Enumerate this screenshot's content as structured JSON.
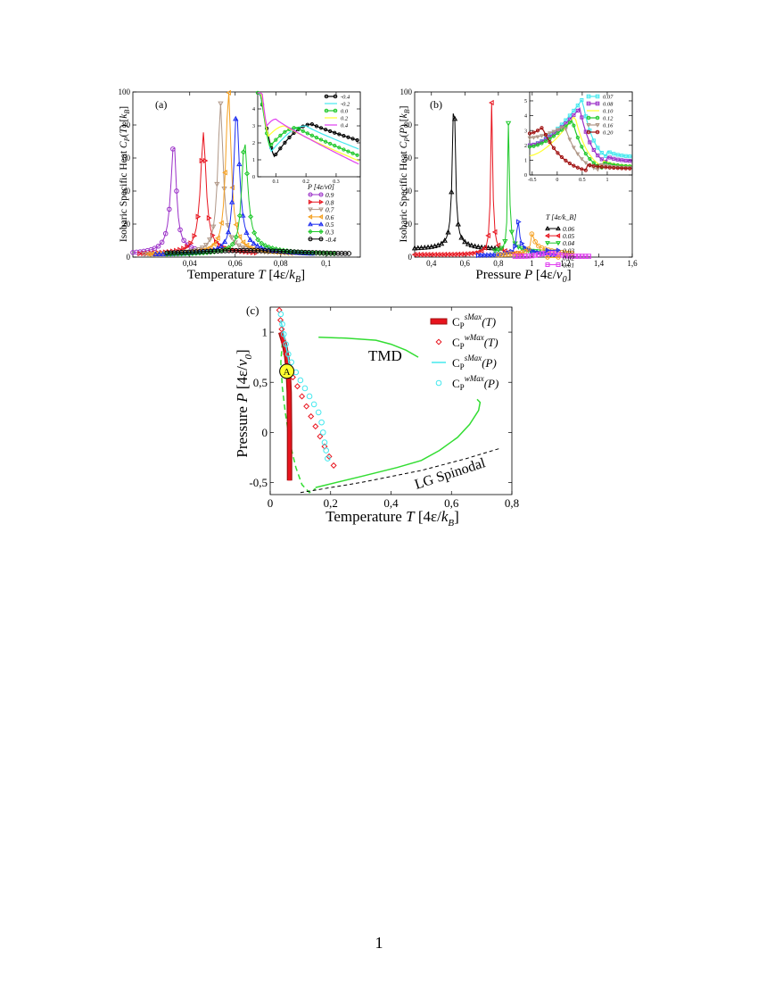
{
  "page_number": "1",
  "colors": {
    "purple": "#9b30c8",
    "red": "#e8141e",
    "tan": "#b09888",
    "orange": "#f5a020",
    "blue": "#1c2cf0",
    "green": "#1ec82a",
    "black": "#000000",
    "cyan": "#44e8ee",
    "yellow": "#ffff30",
    "magenta": "#e040f0",
    "darkred": "#a01010",
    "brightgreen": "#33dd33"
  },
  "chart_data": [
    {
      "id": "a",
      "type": "line",
      "panel_label": "(a)",
      "xlabel": "Temperature T  [4ε/k_B]",
      "ylabel": "Isobaric Specific Heat C_P(T)  [k_B]",
      "xlim": [
        0.015,
        0.115
      ],
      "ylim": [
        0,
        100
      ],
      "xticks": [
        {
          "v": 0.04,
          "t": "0,04"
        },
        {
          "v": 0.06,
          "t": "0,06"
        },
        {
          "v": 0.08,
          "t": "0,08"
        },
        {
          "v": 0.1,
          "t": "0,1"
        }
      ],
      "yticks": [
        0,
        20,
        40,
        60,
        80,
        100
      ],
      "legend_title": "P  [4ε/v0]",
      "series": [
        {
          "name": "0.9",
          "color": "purple",
          "marker": "o",
          "peak": 0.033,
          "height": 65,
          "base": 1.5,
          "wl": 0.0045,
          "wr": 0.0035,
          "xmin": 0.015,
          "xmax": 0.05
        },
        {
          "name": "0.8",
          "color": "red",
          "marker": ">",
          "peak": 0.046,
          "height": 68,
          "base": 1.5,
          "wl": 0.0045,
          "wr": 0.004,
          "xmin": 0.018,
          "xmax": 0.07
        },
        {
          "name": "0.7",
          "color": "tan",
          "marker": "v",
          "peak": 0.0535,
          "height": 86,
          "base": 1.5,
          "wl": 0.004,
          "wr": 0.004,
          "xmin": 0.02,
          "xmax": 0.075
        },
        {
          "name": "0.6",
          "color": "orange",
          "marker": "<",
          "peak": 0.057,
          "height": 94,
          "base": 1.5,
          "wl": 0.004,
          "wr": 0.004,
          "xmin": 0.022,
          "xmax": 0.085
        },
        {
          "name": "0.5",
          "color": "blue",
          "marker": "^",
          "peak": 0.0605,
          "height": 83,
          "base": 1.5,
          "wl": 0.004,
          "wr": 0.0045,
          "xmin": 0.025,
          "xmax": 0.095
        },
        {
          "name": "0.3",
          "color": "green",
          "marker": "d",
          "peak": 0.064,
          "height": 64,
          "base": 1.5,
          "wl": 0.004,
          "wr": 0.005,
          "xmin": 0.03,
          "xmax": 0.105
        },
        {
          "name": "-0.4",
          "color": "black",
          "marker": "o",
          "peak": 0.064,
          "height": 0,
          "base": 2.0,
          "wl": 0.01,
          "wr": 0.02,
          "xmin": 0.03,
          "xmax": 0.11
        }
      ],
      "inset": {
        "xlim": [
          0.04,
          0.38
        ],
        "ylim": [
          0,
          5
        ],
        "xticks": [
          {
            "v": 0.1,
            "t": "0.1"
          },
          {
            "v": 0.2,
            "t": "0.2"
          },
          {
            "v": 0.3,
            "t": "0.3"
          }
        ],
        "yticks": [
          0,
          1,
          2,
          3,
          4
        ],
        "series": [
          {
            "name": "-0.4",
            "color": "black",
            "marker": "o",
            "min_x": 0.095,
            "min_y": 1.2,
            "peak_x": 0.22,
            "peak_y": 3.1,
            "end_y": 2.1
          },
          {
            "name": "-0.2",
            "color": "cyan",
            "marker": "none",
            "min_x": 0.085,
            "min_y": 1.5,
            "peak_x": 0.2,
            "peak_y": 3.0,
            "end_y": 1.6
          },
          {
            "name": "0.0",
            "color": "green",
            "marker": "o",
            "min_x": 0.08,
            "min_y": 1.8,
            "peak_x": 0.17,
            "peak_y": 2.9,
            "end_y": 1.2
          },
          {
            "name": "0.2",
            "color": "yellow",
            "marker": "none",
            "min_x": 0.075,
            "min_y": 2.4,
            "peak_x": 0.13,
            "peak_y": 3.0,
            "end_y": 0.9
          },
          {
            "name": "0.4",
            "color": "magenta",
            "marker": "none",
            "min_x": 0.07,
            "min_y": 3.0,
            "peak_x": 0.1,
            "peak_y": 3.4,
            "end_y": 0.7
          }
        ]
      }
    },
    {
      "id": "b",
      "type": "line",
      "panel_label": "(b)",
      "xlabel": "Pressure P  [4ε/v_0]",
      "ylabel": "Isobaric Specific Heat C_P(P)  [k_B]",
      "xlim": [
        0.3,
        1.6
      ],
      "ylim": [
        0,
        100
      ],
      "xticks": [
        {
          "v": 0.4,
          "t": "0,4"
        },
        {
          "v": 0.6,
          "t": "0,6"
        },
        {
          "v": 0.8,
          "t": "0,8"
        },
        {
          "v": 1.0,
          "t": "1"
        },
        {
          "v": 1.2,
          "t": "1,2"
        },
        {
          "v": 1.4,
          "t": "1,4"
        },
        {
          "v": 1.6,
          "t": "1,6"
        }
      ],
      "yticks": [
        0,
        20,
        40,
        60,
        80,
        100
      ],
      "legend_title": "T  [4ε/k_B]",
      "series": [
        {
          "name": "0.06",
          "color": "black",
          "marker": "^",
          "peak": 0.535,
          "height": 97,
          "base": 5,
          "wl": 0.03,
          "wr": 0.025,
          "xmin": 0.3,
          "xmax": 0.8
        },
        {
          "name": "0.05",
          "color": "red",
          "marker": "<",
          "peak": 0.76,
          "height": 86,
          "base": 1.5,
          "wl": 0.02,
          "wr": 0.02,
          "xmin": 0.3,
          "xmax": 0.95
        },
        {
          "name": "0.04",
          "color": "green",
          "marker": "v",
          "peak": 0.86,
          "height": 72,
          "base": 3,
          "wl": 0.015,
          "wr": 0.02,
          "xmin": 0.78,
          "xmax": 1.1
        },
        {
          "name": "0.03",
          "color": "blue",
          "marker": ">",
          "peak": 0.915,
          "height": 18,
          "base": 1,
          "wl": 0.02,
          "wr": 0.03,
          "xmin": 0.68,
          "xmax": 1.15
        },
        {
          "name": "0.02",
          "color": "orange",
          "marker": "o",
          "peak": 1.0,
          "height": 7,
          "base": 1,
          "wl": 0.03,
          "wr": 0.05,
          "xmin": 0.8,
          "xmax": 1.25
        },
        {
          "name": "0.01",
          "color": "magenta",
          "marker": "s",
          "peak": 1.1,
          "height": 0,
          "base": 0.5,
          "wl": 0.05,
          "wr": 0.05,
          "xmin": 0.9,
          "xmax": 1.35
        }
      ],
      "inset": {
        "xlim": [
          -0.55,
          1.5
        ],
        "ylim": [
          0,
          5.6
        ],
        "xticks": [
          {
            "v": -0.5,
            "t": "-0.5"
          },
          {
            "v": 0,
            "t": "0"
          },
          {
            "v": 0.5,
            "t": "0.5"
          },
          {
            "v": 1,
            "t": "1"
          }
        ],
        "yticks": [
          0,
          1,
          2,
          3,
          4,
          5
        ],
        "series": [
          {
            "name": "0.07",
            "color": "cyan",
            "marker": "s",
            "start_y": 2.0,
            "peak_x": 0.5,
            "peak_y": 5.1,
            "end_y": 1.2
          },
          {
            "name": "0.08",
            "color": "purple",
            "marker": "s",
            "start_y": 2.0,
            "peak_x": 0.45,
            "peak_y": 4.5,
            "end_y": 0.9
          },
          {
            "name": "0.10",
            "color": "yellow",
            "marker": "none",
            "start_y": 1.3,
            "peak_x": 0.35,
            "peak_y": 4.0,
            "end_y": 0.6
          },
          {
            "name": "0.12",
            "color": "green",
            "marker": "o",
            "start_y": 1.9,
            "peak_x": 0.3,
            "peak_y": 3.7,
            "end_y": 0.55
          },
          {
            "name": "0.16",
            "color": "tan",
            "marker": "v",
            "start_y": 2.5,
            "peak_x": 0.15,
            "peak_y": 3.3,
            "end_y": 0.45
          },
          {
            "name": "0.20",
            "color": "darkred",
            "marker": "o",
            "start_y": 2.8,
            "peak_x": -0.3,
            "peak_y": 3.2,
            "end_y": 0.4
          }
        ]
      }
    },
    {
      "id": "c",
      "type": "line",
      "panel_label": "(c)",
      "xlabel": "Temperature T  [4ε/k_B]",
      "ylabel": "Pressure P  [4ε/v_0]",
      "xlim": [
        0,
        0.8
      ],
      "ylim": [
        -0.62,
        1.25
      ],
      "xticks": [
        {
          "v": 0,
          "t": "0"
        },
        {
          "v": 0.2,
          "t": "0,2"
        },
        {
          "v": 0.4,
          "t": "0,4"
        },
        {
          "v": 0.6,
          "t": "0,6"
        },
        {
          "v": 0.8,
          "t": "0,8"
        }
      ],
      "yticks": [
        {
          "v": -0.5,
          "t": "-0,5"
        },
        {
          "v": 0,
          "t": "0"
        },
        {
          "v": 0.5,
          "t": "0,5"
        },
        {
          "v": 1,
          "t": "1"
        }
      ],
      "annotations": {
        "tmd": "TMD",
        "spinodal": "LG Spinodal",
        "point": "A"
      },
      "legend": [
        {
          "label": "C_P^sMax(T)",
          "color": "red"
        },
        {
          "label": "C_P^wMax(T)",
          "color": "red"
        },
        {
          "label": "C_P^sMax(P)",
          "color": "cyan"
        },
        {
          "label": "C_P^wMax(P)",
          "color": "cyan"
        }
      ],
      "point_A": {
        "x": 0.055,
        "y": 0.61
      },
      "cp_smax_T": [
        [
          0.064,
          -0.48
        ],
        [
          0.064,
          0.0
        ],
        [
          0.063,
          0.4
        ],
        [
          0.06,
          0.6
        ],
        [
          0.055,
          0.75
        ],
        [
          0.047,
          0.88
        ],
        [
          0.035,
          1.0
        ]
      ],
      "cp_wmax_T": [
        [
          0.03,
          1.22
        ],
        [
          0.034,
          1.12
        ],
        [
          0.038,
          1.03
        ],
        [
          0.045,
          0.9
        ],
        [
          0.052,
          0.78
        ],
        [
          0.06,
          0.66
        ],
        [
          0.075,
          0.55
        ],
        [
          0.09,
          0.46
        ],
        [
          0.105,
          0.36
        ],
        [
          0.12,
          0.26
        ],
        [
          0.135,
          0.16
        ],
        [
          0.15,
          0.06
        ],
        [
          0.165,
          -0.04
        ],
        [
          0.18,
          -0.14
        ],
        [
          0.195,
          -0.24
        ],
        [
          0.21,
          -0.33
        ]
      ],
      "cp_smax_P": [
        [
          0.035,
          1.12
        ],
        [
          0.04,
          1.05
        ],
        [
          0.045,
          0.98
        ],
        [
          0.05,
          0.9
        ],
        [
          0.055,
          0.82
        ],
        [
          0.06,
          0.74
        ],
        [
          0.063,
          0.67
        ]
      ],
      "cp_wmax_P": [
        [
          0.035,
          1.18
        ],
        [
          0.04,
          1.08
        ],
        [
          0.045,
          0.98
        ],
        [
          0.052,
          0.88
        ],
        [
          0.06,
          0.78
        ],
        [
          0.07,
          0.7
        ],
        [
          0.085,
          0.6
        ],
        [
          0.1,
          0.52
        ],
        [
          0.115,
          0.44
        ],
        [
          0.13,
          0.36
        ],
        [
          0.145,
          0.28
        ],
        [
          0.16,
          0.2
        ],
        [
          0.17,
          0.1
        ],
        [
          0.175,
          0.0
        ],
        [
          0.18,
          -0.1
        ],
        [
          0.185,
          -0.18
        ],
        [
          0.19,
          -0.26
        ]
      ],
      "tmd_line": [
        [
          0.16,
          0.95
        ],
        [
          0.25,
          0.94
        ],
        [
          0.35,
          0.92
        ],
        [
          0.4,
          0.88
        ],
        [
          0.45,
          0.82
        ],
        [
          0.49,
          0.75
        ]
      ],
      "green_solid": [
        [
          0.15,
          -0.55
        ],
        [
          0.3,
          -0.44
        ],
        [
          0.42,
          -0.35
        ],
        [
          0.5,
          -0.28
        ],
        [
          0.56,
          -0.18
        ],
        [
          0.62,
          -0.05
        ],
        [
          0.66,
          0.08
        ],
        [
          0.69,
          0.22
        ],
        [
          0.695,
          0.3
        ],
        [
          0.685,
          0.33
        ]
      ],
      "green_dashed": [
        [
          0.04,
          0.9
        ],
        [
          0.035,
          0.7
        ],
        [
          0.04,
          0.45
        ],
        [
          0.05,
          0.2
        ],
        [
          0.065,
          -0.1
        ],
        [
          0.085,
          -0.35
        ],
        [
          0.105,
          -0.52
        ],
        [
          0.13,
          -0.6
        ],
        [
          0.15,
          -0.56
        ]
      ],
      "spinodal": [
        [
          0.1,
          -0.6
        ],
        [
          0.3,
          -0.5
        ],
        [
          0.5,
          -0.38
        ],
        [
          0.65,
          -0.26
        ],
        [
          0.76,
          -0.16
        ]
      ]
    }
  ]
}
